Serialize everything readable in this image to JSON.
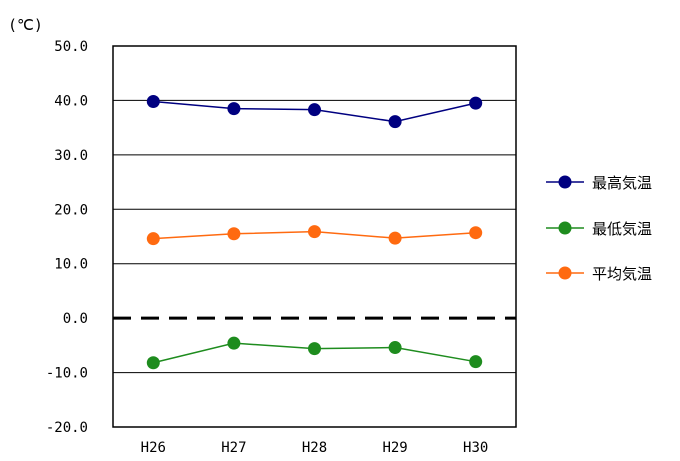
{
  "chart_data": {
    "type": "line",
    "unit_label": "(℃)",
    "categories": [
      "H26",
      "H27",
      "H28",
      "H29",
      "H30"
    ],
    "ylim": [
      -20,
      50
    ],
    "yticks": [
      "50.0",
      "40.0",
      "30.0",
      "20.0",
      "10.0",
      "0.0",
      "-10.0",
      "-20.0"
    ],
    "grid": true,
    "zero_line": "dashed",
    "legend_position": "right",
    "series": [
      {
        "name": "最高気温",
        "color": "#000080",
        "values": [
          39.8,
          38.5,
          38.3,
          36.1,
          39.5
        ]
      },
      {
        "name": "最低気温",
        "color": "#1e8c1e",
        "values": [
          -8.2,
          -4.6,
          -5.6,
          -5.4,
          -8.0
        ]
      },
      {
        "name": "平均気温",
        "color": "#ff6a10",
        "values": [
          14.6,
          15.5,
          15.9,
          14.7,
          15.7
        ]
      }
    ]
  }
}
